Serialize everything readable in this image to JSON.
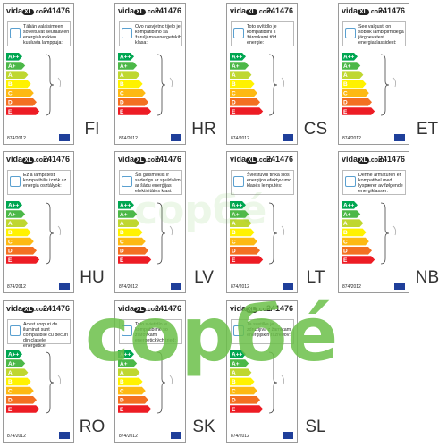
{
  "brand": "vida",
  "brand_badge": "XL",
  "brand_suffix": ".com",
  "product_number": "241476",
  "regulation": "874/2012",
  "classes": [
    "A++",
    "A+",
    "A",
    "B",
    "C",
    "D",
    "E"
  ],
  "labels": [
    {
      "lang": "FI",
      "text": "Tähän valaisimeen soveltuvat seuraavien energialuokkien kuuluvia lamppuja:"
    },
    {
      "lang": "HR",
      "text": "Ovo rasvjetno tijelo je kompatibilno sa žaruljama energetskih klasa:"
    },
    {
      "lang": "CS",
      "text": "Toto svítidlo je kompatibilní s žárovkami tříd energie:"
    },
    {
      "lang": "ET",
      "text": "See valgusti on sobilik lambipirnidega järgnevatest energiaklassidest:"
    },
    {
      "lang": "HU",
      "text": "Ez a lámpatest kompatibilis izzók az energia osztályok:"
    },
    {
      "lang": "LV",
      "text": "Šis gaismeklis ir saderīgs ar spuldzēm ar šādu enerģijas efektivitātes klasi:"
    },
    {
      "lang": "LT",
      "text": "Šviestuvui tinka šios energijos efektyvumo klasės lemputės:"
    },
    {
      "lang": "NB",
      "text": "Denne armaturen er kompatibel med lyspærer av følgende energiklasser:"
    },
    {
      "lang": "RO",
      "text": "Acest corpuri de iluminat sunt compatibile cu becuri din clasele energetice:"
    },
    {
      "lang": "SK",
      "text": "Toto svietidlo je kompatibilné so žiarovkami energetických tried:"
    },
    {
      "lang": "SL",
      "text": "Ta svetilka je združljiva z žarnicami energijskih razredov:"
    }
  ],
  "watermark": "copбé"
}
